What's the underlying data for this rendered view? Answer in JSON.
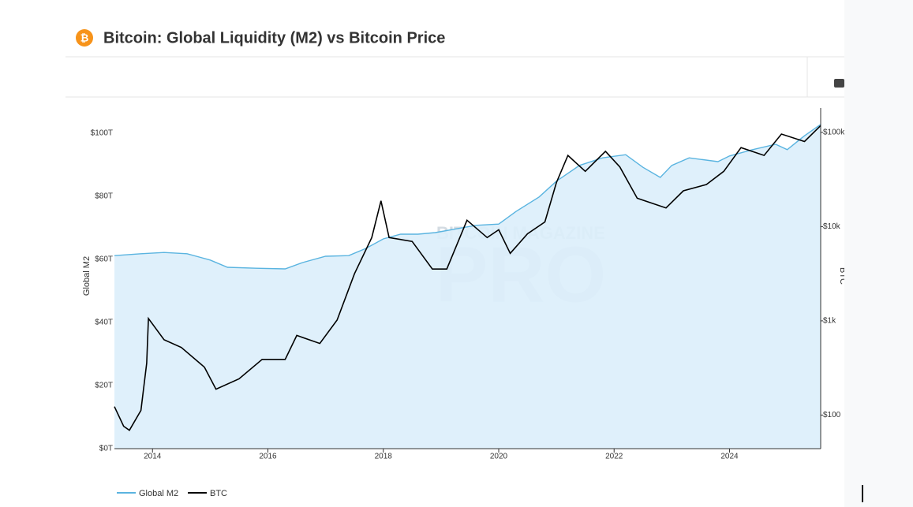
{
  "chart_data": {
    "type": "line",
    "title": "Bitcoin: Global Liquidity (M2) vs Bitcoin Price",
    "ylabel": "Global M2",
    "y2label": "BTC",
    "watermark": [
      "BITCOIN MAGAZINE",
      "PRO"
    ],
    "xlim": [
      2013.34,
      2025.58
    ],
    "xticks": [
      2014,
      2016,
      2018,
      2020,
      2022,
      2024
    ],
    "ylim": [
      0,
      107
    ],
    "yticks": [
      {
        "value": 0,
        "label": "$0T"
      },
      {
        "value": 20,
        "label": "$20T"
      },
      {
        "value": 40,
        "label": "$40T"
      },
      {
        "value": 60,
        "label": "$60T"
      },
      {
        "value": 80,
        "label": "$80T"
      },
      {
        "value": 100,
        "label": "$100T"
      }
    ],
    "y2lim": [
      44,
      168000
    ],
    "y2_log": true,
    "y2ticks": [
      {
        "value": 100,
        "label": "$100"
      },
      {
        "value": 1000,
        "label": "$1k"
      },
      {
        "value": 10000,
        "label": "$10k"
      },
      {
        "value": 100000,
        "label": "$100k"
      }
    ],
    "legend": "bottom-left",
    "series": [
      {
        "name": "Global M2",
        "color": "#5ab4e0",
        "fill": "#dceefb",
        "x": [
          2013.34,
          2013.8,
          2014.2,
          2014.6,
          2015.0,
          2015.3,
          2015.8,
          2016.3,
          2016.6,
          2017.0,
          2017.4,
          2017.7,
          2018.0,
          2018.3,
          2018.6,
          2018.9,
          2019.3,
          2019.6,
          2020.0,
          2020.3,
          2020.7,
          2021.0,
          2021.4,
          2021.8,
          2022.2,
          2022.5,
          2022.8,
          2023.0,
          2023.3,
          2023.8,
          2024.0,
          2024.4,
          2024.8,
          2025.0,
          2025.3,
          2025.58
        ],
        "values": [
          61.2,
          61.8,
          62.2,
          61.8,
          59.8,
          57.5,
          57.2,
          57,
          59,
          61,
          61.2,
          63.5,
          66.5,
          68,
          68,
          68.5,
          69.8,
          70.8,
          71.2,
          75.2,
          79.8,
          84.8,
          89.8,
          92.2,
          93.2,
          89.2,
          86,
          89.8,
          92.2,
          91,
          92.8,
          94.8,
          96.5,
          94.8,
          99.2,
          102.8
        ]
      },
      {
        "name": "BTC",
        "color": "#000000",
        "axis": "y2",
        "x": [
          2013.34,
          2013.5,
          2013.6,
          2013.8,
          2013.9,
          2013.93,
          2014.2,
          2014.5,
          2014.9,
          2015.1,
          2015.5,
          2015.9,
          2016.3,
          2016.5,
          2016.9,
          2017.2,
          2017.5,
          2017.8,
          2017.96,
          2018.1,
          2018.5,
          2018.85,
          2019.1,
          2019.45,
          2019.8,
          2020.0,
          2020.2,
          2020.5,
          2020.8,
          2021.0,
          2021.2,
          2021.5,
          2021.85,
          2022.1,
          2022.4,
          2022.9,
          2023.2,
          2023.6,
          2023.9,
          2024.2,
          2024.6,
          2024.9,
          2025.3,
          2025.58
        ],
        "values": [
          123,
          76,
          69,
          112,
          355,
          1060,
          631,
          521,
          322,
          188,
          242,
          390,
          390,
          700,
          575,
          1020,
          3160,
          7650,
          18800,
          7650,
          6960,
          3550,
          3550,
          11700,
          7650,
          9260,
          5200,
          8400,
          11200,
          29300,
          57000,
          38600,
          63000,
          43000,
          20000,
          15800,
          24000,
          28000,
          38600,
          69000,
          57000,
          96000,
          80000,
          118000
        ]
      }
    ]
  }
}
